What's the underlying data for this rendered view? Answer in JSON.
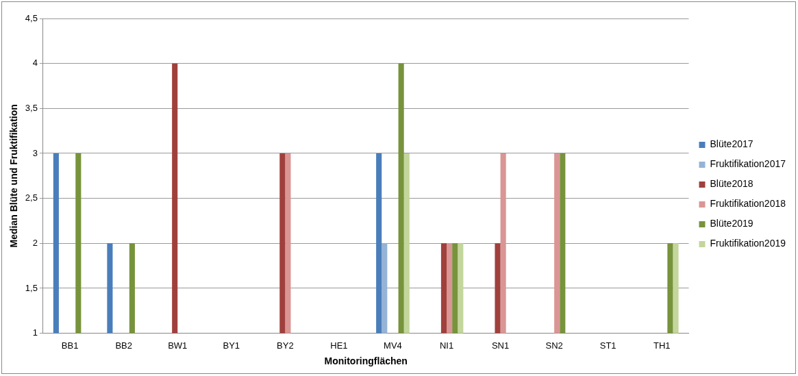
{
  "chart_data": {
    "type": "bar",
    "xlabel": "Monitoringflächen",
    "ylabel": "Median Blüte und Fruktifikation",
    "categories": [
      "BB1",
      "BB2",
      "BW1",
      "BY1",
      "BY2",
      "HE1",
      "MV4",
      "NI1",
      "SN1",
      "SN2",
      "ST1",
      "TH1"
    ],
    "series": [
      {
        "name": "Blüte2017",
        "color": "#4a7ebb",
        "values": [
          3,
          2,
          null,
          null,
          null,
          null,
          3,
          null,
          null,
          null,
          null,
          null
        ]
      },
      {
        "name": "Fruktifikation2017",
        "color": "#95b3d7",
        "values": [
          null,
          null,
          null,
          null,
          null,
          null,
          2,
          null,
          null,
          null,
          null,
          null
        ]
      },
      {
        "name": "Blüte2018",
        "color": "#a0403d",
        "values": [
          null,
          null,
          4,
          null,
          3,
          null,
          null,
          2,
          2,
          null,
          null,
          null
        ]
      },
      {
        "name": "Fruktifikation2018",
        "color": "#d99694",
        "values": [
          null,
          null,
          null,
          null,
          3,
          null,
          null,
          2,
          3,
          3,
          null,
          null
        ]
      },
      {
        "name": "Blüte2019",
        "color": "#77933c",
        "values": [
          3,
          2,
          null,
          null,
          null,
          null,
          4,
          2,
          null,
          3,
          null,
          2
        ]
      },
      {
        "name": "Fruktifikation2019",
        "color": "#c3d69b",
        "values": [
          null,
          null,
          null,
          null,
          null,
          null,
          3,
          2,
          null,
          null,
          null,
          2
        ]
      }
    ],
    "ylim": [
      1,
      4.5
    ],
    "yticks": [
      1,
      {
        "value": 1.5,
        "label": "1,5"
      },
      2,
      {
        "value": 2.5,
        "label": "2,5"
      },
      3,
      {
        "value": 3.5,
        "label": "3,5"
      },
      4,
      {
        "value": 4.5,
        "label": "4,5"
      }
    ],
    "grid": "y",
    "legend": "right"
  }
}
